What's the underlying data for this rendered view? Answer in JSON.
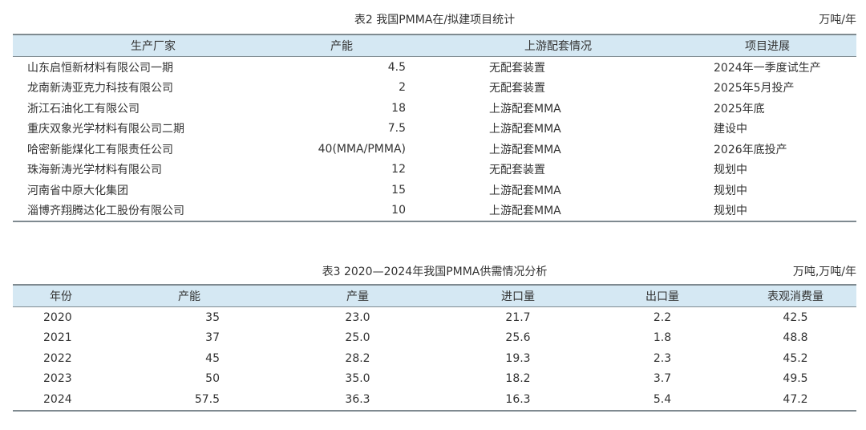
{
  "table2": {
    "caption": "表2  我国PMMA在/拟建项目统计",
    "unit": "万吨/年",
    "headers": [
      "生产厂家",
      "产能",
      "上游配套情况",
      "项目进展"
    ],
    "rows": [
      [
        "山东启恒新材料有限公司一期",
        "4.5",
        "无配套装置",
        "2024年一季度试生产"
      ],
      [
        "龙南新涛亚克力科技有限公司",
        "2",
        "无配套装置",
        "2025年5月投产"
      ],
      [
        "浙江石油化工有限公司",
        "18",
        "上游配套MMA",
        "2025年底"
      ],
      [
        "重庆双象光学材料有限公司二期",
        "7.5",
        "上游配套MMA",
        "建设中"
      ],
      [
        "哈密新能煤化工有限责任公司",
        "40(MMA/PMMA)",
        "上游配套MMA",
        "2026年底投产"
      ],
      [
        "珠海新涛光学材料有限公司",
        "12",
        "无配套装置",
        "规划中"
      ],
      [
        "河南省中原大化集团",
        "15",
        "上游配套MMA",
        "规划中"
      ],
      [
        "淄博齐翔腾达化工股份有限公司",
        "10",
        "上游配套MMA",
        "规划中"
      ]
    ]
  },
  "table3": {
    "caption": "表3  2020—2024年我国PMMA供需情况分析",
    "unit": "万吨,万吨/年",
    "headers": [
      "年份",
      "产能",
      "产量",
      "进口量",
      "出口量",
      "表观消费量"
    ],
    "rows": [
      [
        "2020",
        "35",
        "23.0",
        "21.7",
        "2.2",
        "42.5"
      ],
      [
        "2021",
        "37",
        "25.0",
        "25.6",
        "1.8",
        "48.8"
      ],
      [
        "2022",
        "45",
        "28.2",
        "19.3",
        "2.3",
        "45.2"
      ],
      [
        "2023",
        "50",
        "35.0",
        "18.2",
        "3.7",
        "49.5"
      ],
      [
        "2024",
        "57.5",
        "36.3",
        "16.3",
        "5.4",
        "47.2"
      ]
    ]
  },
  "colors": {
    "header_bg": "#d5e8f3",
    "rule": "#7f8a90",
    "text": "#333333"
  }
}
